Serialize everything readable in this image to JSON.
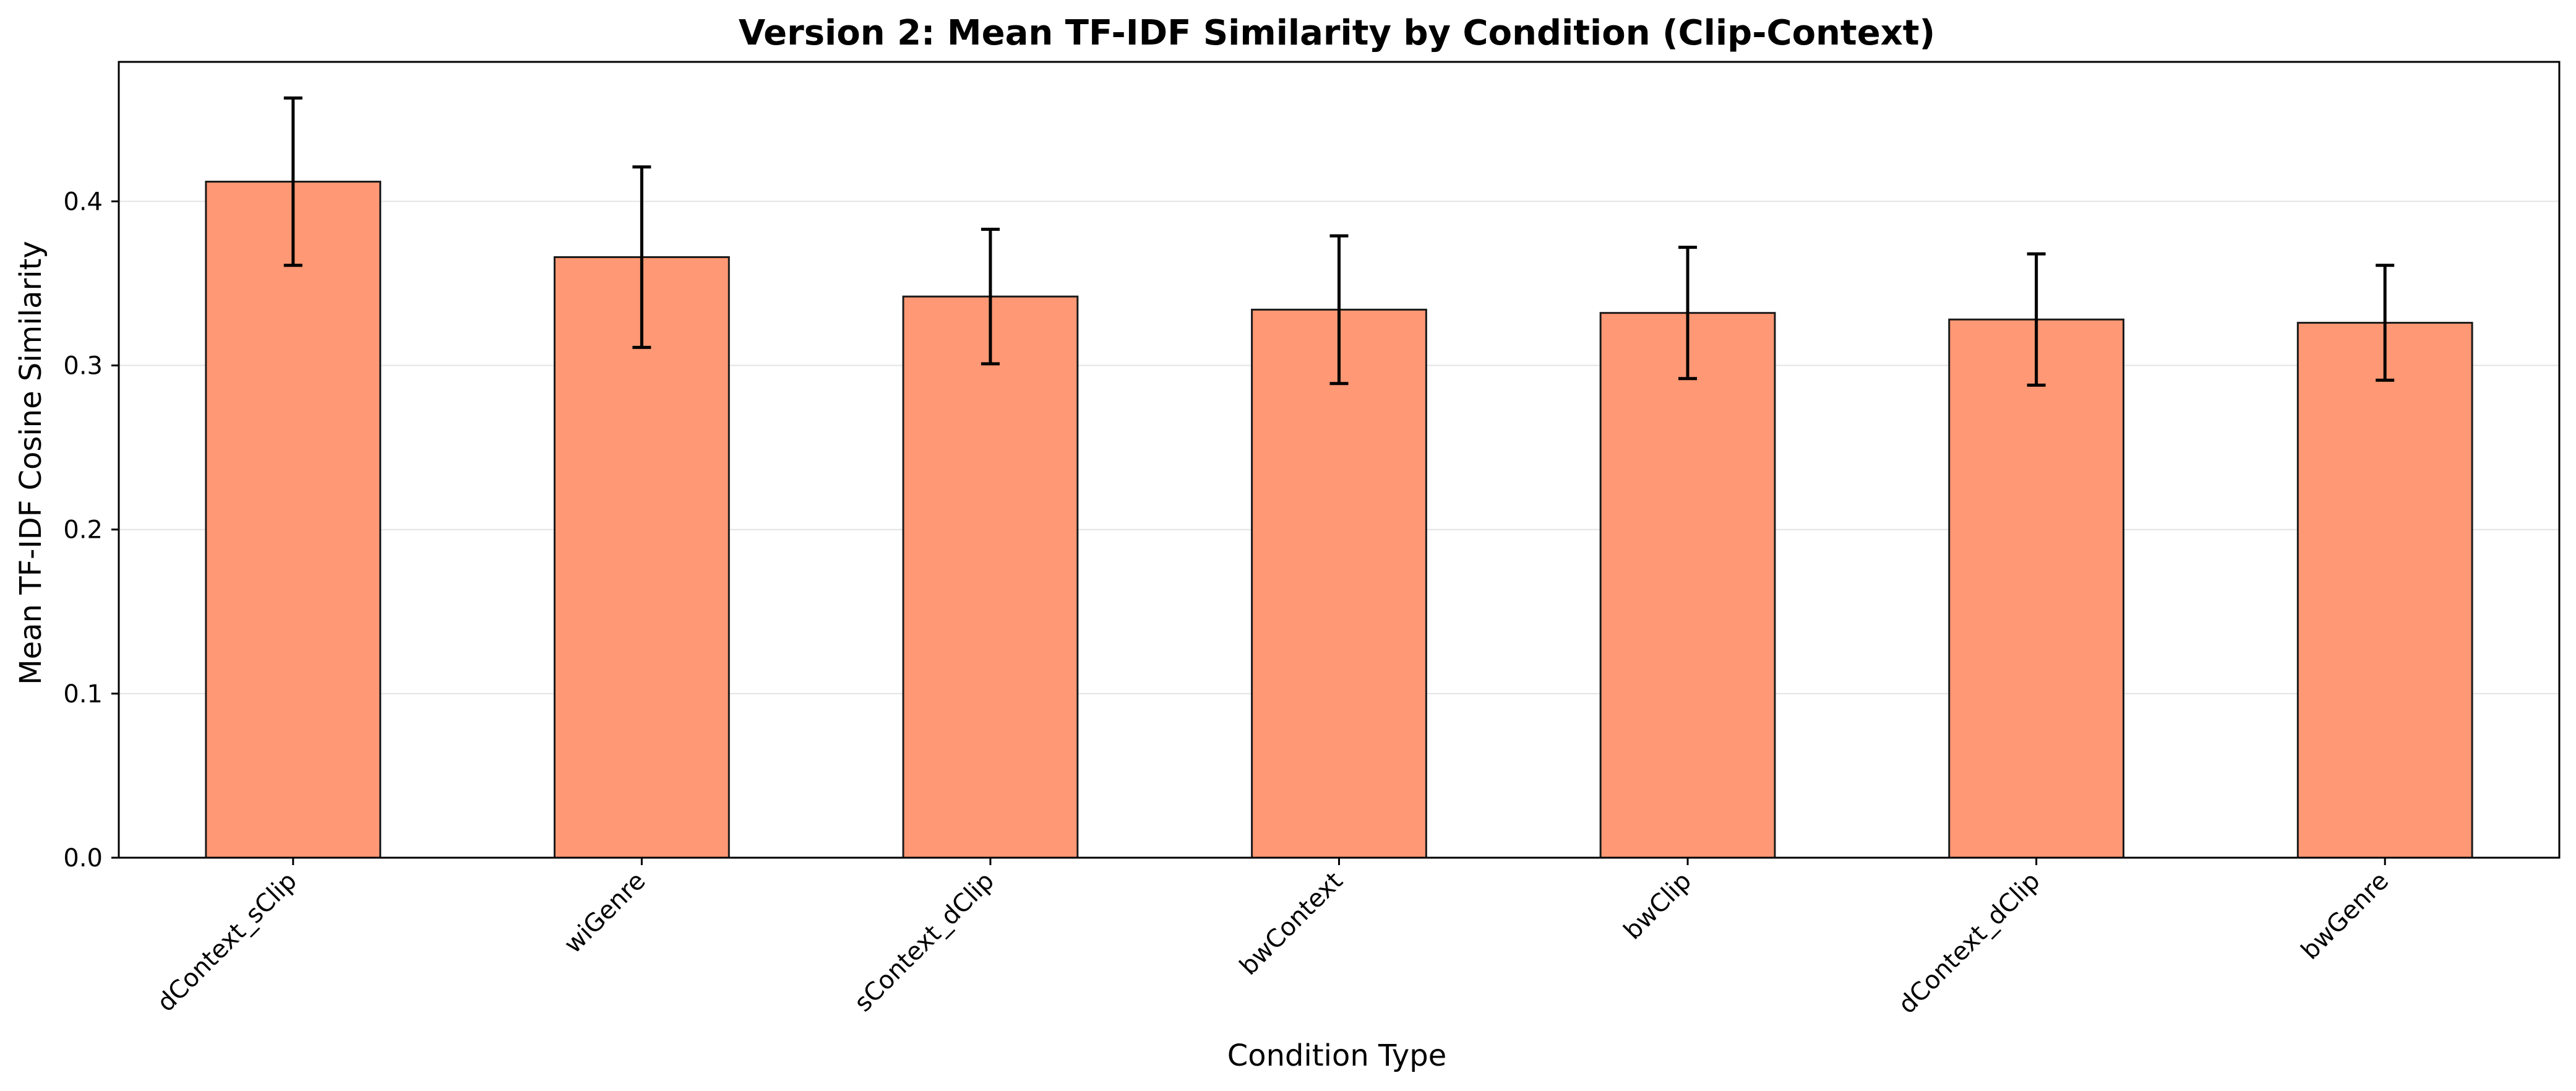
{
  "chart_data": {
    "type": "bar",
    "title": "Version 2: Mean TF-IDF Similarity by Condition (Clip-Context)",
    "xlabel": "Condition Type",
    "ylabel": "Mean TF-IDF Cosine Similarity",
    "categories": [
      "dContext_sClip",
      "wiGenre",
      "sContext_dClip",
      "bwContext",
      "bwClip",
      "dContext_dClip",
      "bwGenre"
    ],
    "values": [
      0.412,
      0.366,
      0.342,
      0.334,
      0.332,
      0.328,
      0.326
    ],
    "error": [
      0.051,
      0.055,
      0.041,
      0.045,
      0.04,
      0.04,
      0.035
    ],
    "ylim": [
      0,
      0.485
    ],
    "yticks": [
      0.0,
      0.1,
      0.2,
      0.3,
      0.4
    ],
    "ytick_labels": [
      "0.0",
      "0.1",
      "0.2",
      "0.3",
      "0.4"
    ],
    "grid": "horizontal",
    "bar_color": "#ff9874",
    "bar_edge_color": "#1a1a1a",
    "error_color": "#000000"
  }
}
